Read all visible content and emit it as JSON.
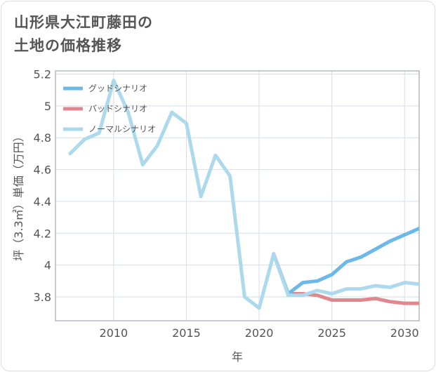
{
  "chart_data": {
    "type": "line",
    "title": [
      "山形県大江町藤田の",
      "土地の価格推移"
    ],
    "xlabel": "年",
    "ylabel": "坪（3.3㎡）単価（万円）",
    "xlim": [
      2006,
      2031
    ],
    "ylim": [
      3.65,
      5.22
    ],
    "xticks": [
      2010,
      2015,
      2020,
      2025,
      2030
    ],
    "yticks": [
      3.8,
      4,
      4.2,
      4.4,
      4.6,
      4.8,
      5,
      5.2
    ],
    "ytick_labels": [
      "3.8",
      "4",
      "4.2",
      "4.4",
      "4.6",
      "4.8",
      "5",
      "5.2"
    ],
    "legend_position": "top-left",
    "series": [
      {
        "name": "グッドシナリオ",
        "color": "#6cb9e8",
        "x": [
          2021,
          2022,
          2023,
          2024,
          2025,
          2026,
          2027,
          2028,
          2029,
          2030,
          2031
        ],
        "y": [
          4.07,
          3.82,
          3.89,
          3.9,
          3.94,
          4.02,
          4.05,
          4.1,
          4.15,
          4.19,
          4.23
        ]
      },
      {
        "name": "バッドシナリオ",
        "color": "#e0878e",
        "x": [
          2021,
          2022,
          2023,
          2024,
          2025,
          2026,
          2027,
          2028,
          2029,
          2030,
          2031
        ],
        "y": [
          4.07,
          3.82,
          3.82,
          3.81,
          3.78,
          3.78,
          3.78,
          3.79,
          3.77,
          3.76,
          3.76
        ]
      },
      {
        "name": "ノーマルシナリオ",
        "color": "#add9ec",
        "x": [
          2007,
          2008,
          2009,
          2010,
          2011,
          2012,
          2013,
          2014,
          2015,
          2016,
          2017,
          2018,
          2019,
          2020,
          2021,
          2022,
          2023,
          2024,
          2025,
          2026,
          2027,
          2028,
          2029,
          2030,
          2031
        ],
        "y": [
          4.7,
          4.79,
          4.83,
          5.16,
          4.96,
          4.63,
          4.75,
          4.96,
          4.89,
          4.43,
          4.69,
          4.56,
          3.8,
          3.73,
          4.07,
          3.81,
          3.81,
          3.84,
          3.82,
          3.85,
          3.85,
          3.87,
          3.86,
          3.89,
          3.88
        ]
      }
    ]
  }
}
